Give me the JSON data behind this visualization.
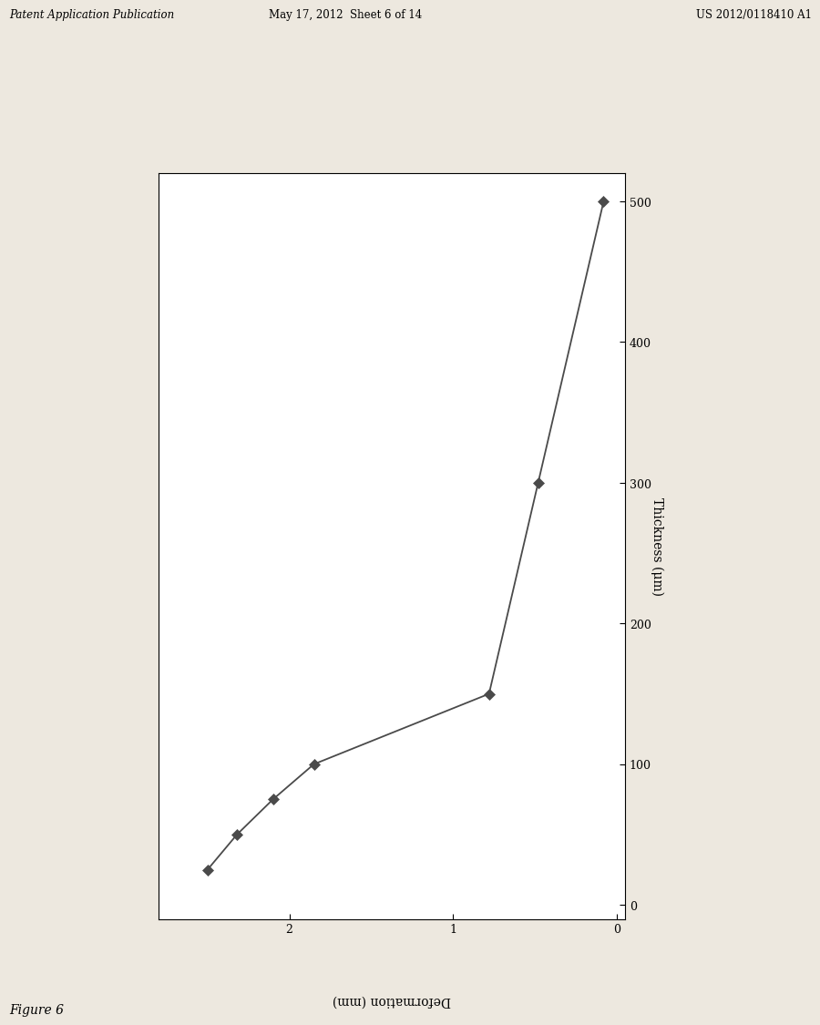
{
  "thickness": [
    25,
    50,
    75,
    100,
    150,
    300,
    500
  ],
  "deformation": [
    2.5,
    2.32,
    2.1,
    1.85,
    0.78,
    0.48,
    0.08
  ],
  "xlabel": "Deformation (mm)",
  "ylabel": "Thickness (μm)",
  "xlim_left": 2.8,
  "xlim_right": -0.05,
  "ylim_bottom": -10,
  "ylim_top": 520,
  "xticks": [
    2,
    1,
    0
  ],
  "yticks": [
    0,
    100,
    200,
    300,
    400,
    500
  ],
  "figure_caption": "Figure 6",
  "header_left": "Patent Application Publication",
  "header_center": "May 17, 2012  Sheet 6 of 14",
  "header_right": "US 2012/0118410 A1",
  "line_color": "#4a4a4a",
  "marker_color": "#4a4a4a",
  "background_color": "#ede8df",
  "plot_bg_color": "#ffffff",
  "font_size_axis_label": 10,
  "font_size_tick": 9,
  "font_size_header": 8.5,
  "font_size_caption": 10
}
